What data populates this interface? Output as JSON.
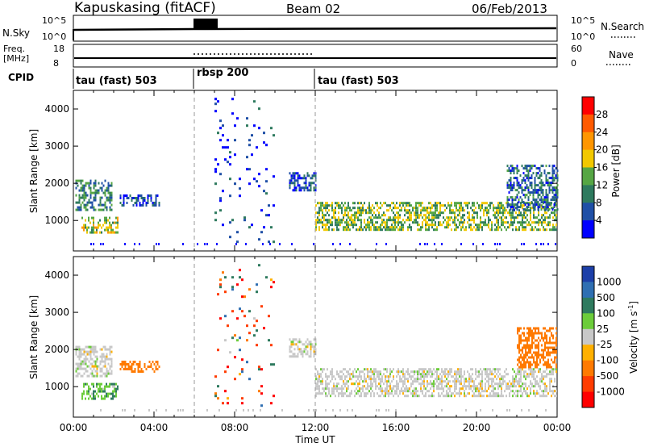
{
  "header": {
    "station": "Kapuskasing (fitACF)",
    "beam": "Beam 02",
    "date": "06/Feb/2013"
  },
  "strips": {
    "nsky_label": "N.Sky",
    "nsky_ticks": [
      "10^5",
      "10^0"
    ],
    "nsearch_label": "N.Search",
    "freq_label_1": "Freq.",
    "freq_label_2": "[MHz]",
    "freq_ticks": [
      "18",
      "8"
    ],
    "nave_ticks": [
      "60",
      "0"
    ],
    "nave_label": "Nave",
    "cpid_label": "CPID",
    "cpid_segments": [
      {
        "label": "tau (fast) 503",
        "start": "00:00",
        "end": "06:00"
      },
      {
        "label": "rbsp 200",
        "start": "06:00",
        "end": "12:00"
      },
      {
        "label": "tau (fast) 503",
        "start": "12:00",
        "end": "24:00"
      }
    ]
  },
  "power_colorbar": {
    "label": "Power [dB]",
    "ticks": [
      "28",
      "24",
      "20",
      "16",
      "12",
      "8",
      "4"
    ],
    "colors": [
      "#ff0000",
      "#ff5a00",
      "#ff9600",
      "#f2c800",
      "#56a644",
      "#2e7a5e",
      "#1f4fa6",
      "#0000ff"
    ]
  },
  "velocity_colorbar": {
    "label": "Velocity [m s",
    "label_sup": "-1",
    "label_end": "]",
    "ticks": [
      "1000",
      "500",
      "100",
      "25",
      "-25",
      "-100",
      "-500",
      "-1000"
    ],
    "colors": [
      "#1c3fa8",
      "#2f6fb2",
      "#2e7a5e",
      "#6ccc3a",
      "#c8c8c8",
      "#ffb000",
      "#ff7a00",
      "#ff3c00",
      "#ff0000"
    ]
  },
  "chart_data": {
    "type": "heatmap",
    "xlabel": "Time UT",
    "ylabel": "Slant Range [km]",
    "x_ticks": [
      "00:00",
      "04:00",
      "08:00",
      "12:00",
      "16:00",
      "20:00",
      "00:00"
    ],
    "xlim_hours": [
      0,
      24
    ],
    "ylim_km": [
      180,
      4500
    ],
    "y_ticks": [
      1000,
      2000,
      3000,
      4000
    ],
    "mode_change_hours": [
      6,
      12
    ],
    "panels": [
      {
        "name": "Power",
        "echo_regions": [
          {
            "t_start": 0.1,
            "t_end": 1.9,
            "r_min": 1300,
            "r_max": 2100,
            "level_db": 12
          },
          {
            "t_start": 0.4,
            "t_end": 2.2,
            "r_min": 650,
            "r_max": 1100,
            "level_db": 18
          },
          {
            "t_start": 2.3,
            "t_end": 4.3,
            "r_min": 1400,
            "r_max": 1700,
            "level_db": 8
          },
          {
            "t_start": 7.0,
            "t_end": 10.0,
            "r_min": 400,
            "r_max": 4300,
            "level_db": 6
          },
          {
            "t_start": 10.7,
            "t_end": 12.0,
            "r_min": 1800,
            "r_max": 2300,
            "level_db": 8
          },
          {
            "t_start": 12.0,
            "t_end": 24.0,
            "r_min": 750,
            "r_max": 1500,
            "level_db": 16
          },
          {
            "t_start": 21.5,
            "t_end": 24.0,
            "r_min": 1300,
            "r_max": 2500,
            "level_db": 10
          }
        ]
      },
      {
        "name": "Velocity",
        "echo_regions": [
          {
            "t_start": 0.1,
            "t_end": 1.9,
            "r_min": 1300,
            "r_max": 2100,
            "velocity": 0
          },
          {
            "t_start": 0.4,
            "t_end": 2.2,
            "r_min": 650,
            "r_max": 1100,
            "velocity": 50
          },
          {
            "t_start": 2.3,
            "t_end": 4.3,
            "r_min": 1400,
            "r_max": 1700,
            "velocity": -150
          },
          {
            "t_start": 7.0,
            "t_end": 10.0,
            "r_min": 400,
            "r_max": 4300,
            "velocity": -300
          },
          {
            "t_start": 10.7,
            "t_end": 12.0,
            "r_min": 1800,
            "r_max": 2300,
            "velocity": 0
          },
          {
            "t_start": 12.0,
            "t_end": 24.0,
            "r_min": 750,
            "r_max": 1500,
            "velocity": 0
          },
          {
            "t_start": 22.0,
            "t_end": 24.0,
            "r_min": 1500,
            "r_max": 2600,
            "velocity": -200
          }
        ]
      }
    ]
  }
}
